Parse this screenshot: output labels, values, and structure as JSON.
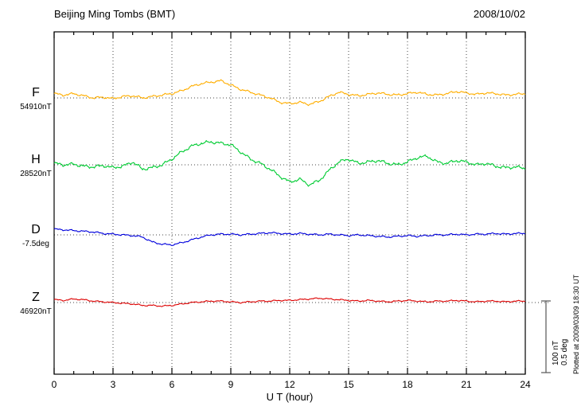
{
  "title": "Beijing Ming Tombs (BMT)",
  "date": "2008/10/02",
  "xlabel": "U T (hour)",
  "plotted_at": "Plotted at 2009/03/09 18:30 UT",
  "scale_bar": {
    "nt_label": "100 nT",
    "deg_label": "0.5 deg",
    "nT": 100,
    "deg": 0.5
  },
  "colors": {
    "F": "#FFAE00",
    "H": "#00CC33",
    "D": "#0000DD",
    "Z": "#DD0000",
    "axis": "#000000"
  },
  "chart_data": {
    "type": "line",
    "x_unit": "hour",
    "x_range": [
      0,
      24
    ],
    "x_ticks": [
      0,
      3,
      6,
      9,
      12,
      15,
      18,
      21,
      24
    ],
    "x_step_hours": 0.5,
    "legend_position": "left",
    "grid": "dotted-vertical-at-major-ticks-and-dotted-baselines",
    "series": [
      {
        "name": "F",
        "unit": "nT",
        "baseline_label": "54910nT",
        "baseline_value": 54910,
        "color_key": "F",
        "offsets": [
          6,
          4,
          6,
          3,
          0,
          1,
          -1,
          2,
          3,
          0,
          2,
          4,
          6,
          10,
          16,
          20,
          22,
          24,
          18,
          12,
          8,
          4,
          0,
          -6,
          -8,
          -6,
          -9,
          -5,
          2,
          8,
          5,
          3,
          5,
          7,
          5,
          4,
          6,
          8,
          5,
          4,
          6,
          9,
          7,
          5,
          7,
          6,
          4,
          5,
          6
        ]
      },
      {
        "name": "H",
        "unit": "nT",
        "baseline_label": "28520nT",
        "baseline_value": 28520,
        "color_key": "H",
        "offsets": [
          2,
          0,
          1,
          -2,
          -3,
          -1,
          -4,
          -2,
          4,
          -6,
          -4,
          0,
          8,
          18,
          26,
          30,
          32,
          30,
          28,
          18,
          8,
          2,
          -6,
          -16,
          -24,
          -20,
          -28,
          -22,
          -8,
          4,
          8,
          2,
          4,
          6,
          2,
          0,
          4,
          10,
          12,
          4,
          2,
          6,
          4,
          0,
          2,
          -2,
          -4,
          -3,
          -5
        ]
      },
      {
        "name": "D",
        "unit": "deg",
        "baseline_label": "-7.5deg",
        "baseline_value": -7.5,
        "color_key": "D",
        "offsets": [
          0.04,
          0.035,
          0.03,
          0.025,
          0.02,
          0.01,
          0.005,
          0,
          -0.005,
          -0.015,
          -0.05,
          -0.065,
          -0.07,
          -0.055,
          -0.035,
          -0.015,
          0,
          0.005,
          0.005,
          0,
          0.005,
          0.01,
          0.015,
          0.01,
          0.005,
          0.01,
          0.005,
          0,
          0.005,
          0,
          -0.005,
          0,
          -0.005,
          -0.01,
          -0.015,
          -0.01,
          -0.005,
          -0.01,
          -0.005,
          0,
          0,
          0.005,
          0,
          0.005,
          0.005,
          0.01,
          0.005,
          0.01,
          0.01
        ]
      },
      {
        "name": "Z",
        "unit": "nT",
        "baseline_label": "46920nT",
        "baseline_value": 46920,
        "color_key": "Z",
        "offsets": [
          4,
          3,
          5,
          4,
          2,
          1,
          0,
          -1,
          -2,
          -4,
          -4,
          -5,
          -4,
          -2,
          0,
          1,
          2,
          2,
          1,
          0,
          1,
          2,
          2,
          3,
          3,
          4,
          5,
          6,
          5,
          4,
          3,
          2,
          3,
          2,
          1,
          2,
          3,
          2,
          1,
          2,
          2,
          3,
          2,
          1,
          2,
          2,
          1,
          2,
          2
        ]
      }
    ]
  }
}
